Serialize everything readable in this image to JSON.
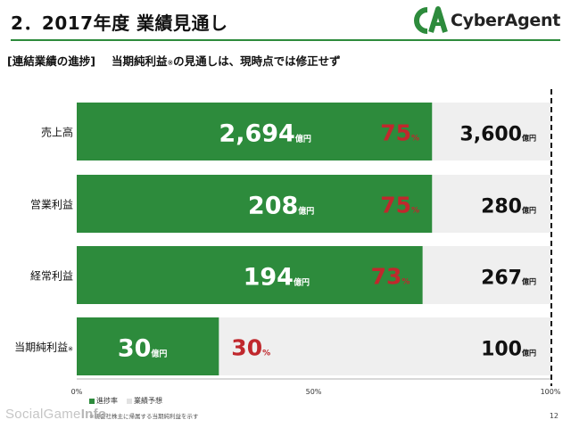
{
  "header": {
    "title": "2．2017年度 業績見通し",
    "logo_text": "CyberAgent"
  },
  "subtitle": {
    "section": "[連結業績の進捗]",
    "text_before": "当期純利益",
    "note_mark": "※",
    "text_after": "の見通しは、現時点では修正せず"
  },
  "chart_data": {
    "type": "bar",
    "orientation": "horizontal",
    "categories": [
      "売上高",
      "営業利益",
      "経常利益",
      "当期純利益"
    ],
    "category_note_mark": "※",
    "series": [
      {
        "name": "進捗率",
        "values": [
          75,
          75,
          73,
          30
        ]
      },
      {
        "name": "業績予想",
        "values": [
          100,
          100,
          100,
          100
        ]
      }
    ],
    "progress_values": [
      "2,694",
      "208",
      "194",
      "30"
    ],
    "forecast_values": [
      "3,600",
      "280",
      "267",
      "100"
    ],
    "value_unit": "億円",
    "percent_labels": [
      "75",
      "75",
      "73",
      "30"
    ],
    "percent_unit": "%",
    "x_ticks": [
      "0%",
      "50%",
      "100%"
    ],
    "xlim": [
      0,
      100
    ],
    "colors": {
      "progress": "#2d8b3c",
      "forecast": "#efefef",
      "percent": "#c0282d",
      "label_on_bar": "#ffffff",
      "label_on_bg": "#111111"
    }
  },
  "legend": {
    "items": [
      {
        "label": "進捗率",
        "color": "#2d8b3c"
      },
      {
        "label": "業績予想",
        "color": "#e2e2e2"
      }
    ]
  },
  "footnote": "※親会社株主に帰属する当期純利益を示す",
  "page_number": "12",
  "watermark": {
    "part1": "SocialGame",
    "part2": "Info"
  }
}
